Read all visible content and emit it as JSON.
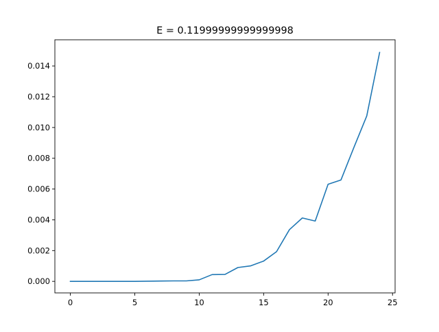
{
  "chart_data": {
    "type": "line",
    "title": "E = 0.11999999999999998",
    "xlabel": "",
    "ylabel": "",
    "xlim": [
      -1.2,
      25.2
    ],
    "ylim": [
      -0.00075,
      0.0157
    ],
    "x_ticks": [
      0,
      5,
      10,
      15,
      20,
      25
    ],
    "x_tick_labels": [
      "0",
      "5",
      "10",
      "15",
      "20",
      "25"
    ],
    "y_ticks": [
      0.0,
      0.002,
      0.004,
      0.006,
      0.008,
      0.01,
      0.012,
      0.014
    ],
    "y_tick_labels": [
      "0.000",
      "0.002",
      "0.004",
      "0.006",
      "0.008",
      "0.010",
      "0.012",
      "0.014"
    ],
    "grid": false,
    "line_color": "#1f77b4",
    "series": [
      {
        "x": [
          0,
          1,
          2,
          3,
          4,
          5,
          6,
          7,
          8,
          9,
          10,
          11,
          12,
          13,
          14,
          15,
          16,
          17,
          18,
          19,
          20,
          21,
          22,
          23,
          24
        ],
        "y": [
          0.0,
          0.0,
          0.0,
          0.0,
          0.0,
          0.0,
          1e-05,
          2e-05,
          3e-05,
          3e-05,
          0.0001,
          0.00044,
          0.00045,
          0.0009,
          0.00101,
          0.00132,
          0.00193,
          0.00336,
          0.00412,
          0.00392,
          0.00631,
          0.00659,
          0.0087,
          0.01075,
          0.01488
        ]
      }
    ]
  }
}
